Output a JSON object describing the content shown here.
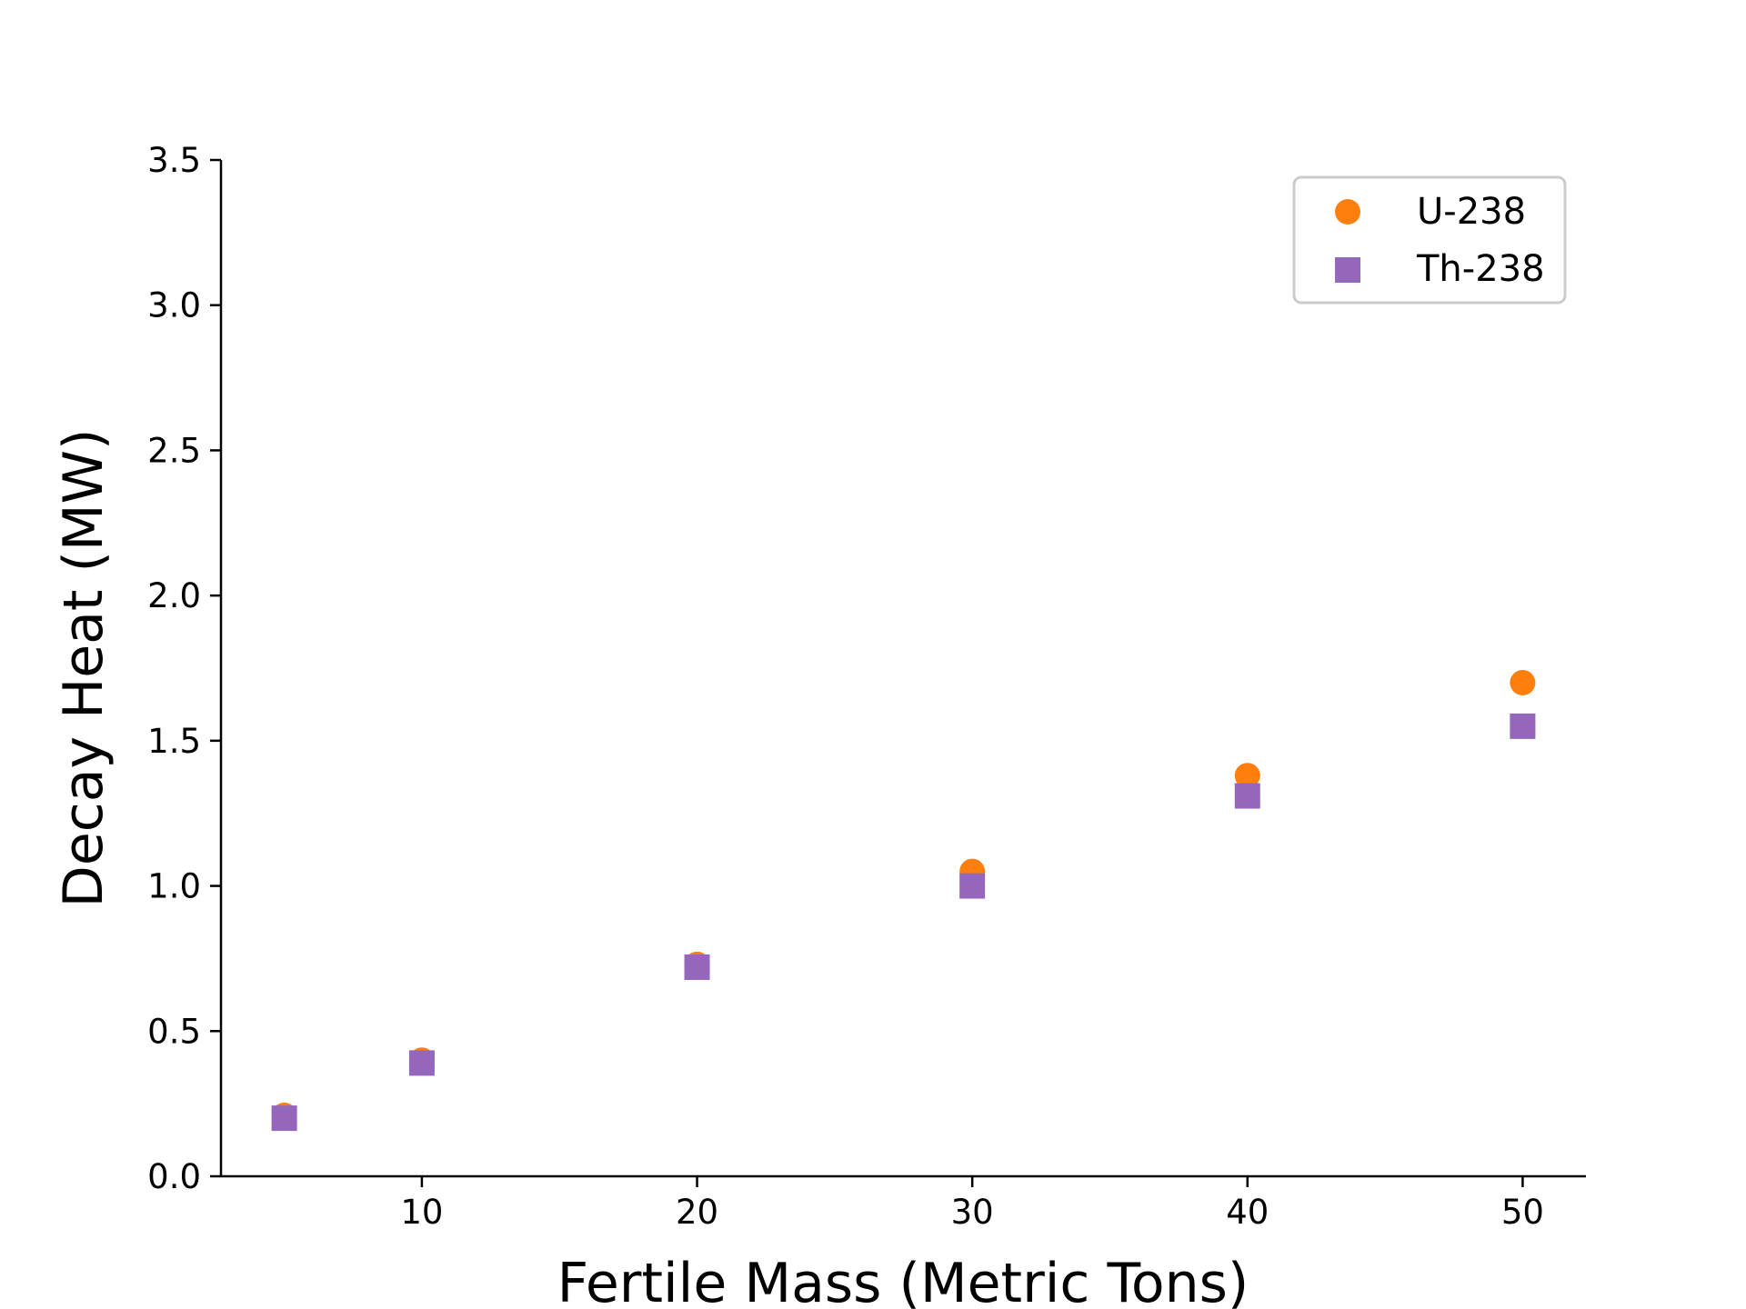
{
  "chart_data": {
    "type": "scatter",
    "title": "",
    "xlabel": "Fertile Mass (Metric Tons)",
    "ylabel": "Decay Heat (MW)",
    "xlim": [
      2.7,
      52.3
    ],
    "ylim": [
      0,
      3.5
    ],
    "xticks": [
      10,
      20,
      30,
      40,
      50
    ],
    "xtick_labels": [
      "10",
      "20",
      "30",
      "40",
      "50"
    ],
    "yticks": [
      0,
      0.5,
      1.0,
      1.5,
      2.0,
      2.5,
      3.0,
      3.5
    ],
    "ytick_labels": [
      "0.0",
      "0.5",
      "1.0",
      "1.5",
      "2.0",
      "2.5",
      "3.0",
      "3.5"
    ],
    "grid": false,
    "legend_position": "top-right",
    "series": [
      {
        "name": "U-238",
        "marker": "circle",
        "color": "#ff7f0e",
        "x": [
          5,
          10,
          20,
          30,
          40,
          50
        ],
        "y": [
          0.21,
          0.4,
          0.73,
          1.05,
          1.38,
          1.7
        ]
      },
      {
        "name": "Th-238",
        "marker": "square",
        "color": "#9467bd",
        "x": [
          5,
          10,
          20,
          30,
          40,
          50
        ],
        "y": [
          0.2,
          0.39,
          0.72,
          1.0,
          1.31,
          1.55
        ]
      }
    ]
  }
}
